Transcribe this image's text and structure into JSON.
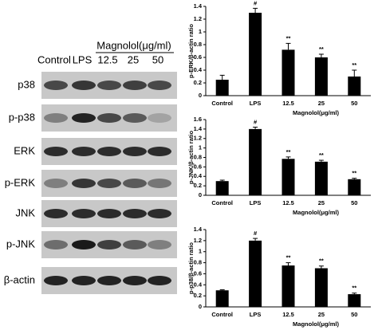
{
  "blot": {
    "columns": [
      "Control",
      "LPS",
      "12.5",
      "25",
      "50"
    ],
    "group_label": "Magnolol(μg/ml)",
    "rows": [
      "p38",
      "p-p38",
      "ERK",
      "p-ERK",
      "JNK",
      "p-JNK",
      "β-actin"
    ]
  },
  "chart_data": [
    {
      "type": "bar",
      "y_label": "p-ERK/β-actin ratio",
      "x_label": "Magnolol(μg/ml)",
      "color": "#000000",
      "categories": [
        "Control",
        "LPS",
        "12.5",
        "25",
        "50"
      ],
      "values": [
        0.25,
        1.3,
        0.72,
        0.6,
        0.3
      ],
      "errors": [
        0.07,
        0.07,
        0.1,
        0.05,
        0.1
      ],
      "annotations": [
        null,
        "#",
        "**",
        "**",
        "**"
      ],
      "ylim": [
        0,
        1.4
      ],
      "yticks": [
        0,
        0.2,
        0.4,
        0.6,
        0.8,
        1,
        1.2,
        1.4
      ]
    },
    {
      "type": "bar",
      "y_label": "p-JNK/β-actin ratio",
      "x_label": "Magnolol(μg/ml)",
      "color": "#000000",
      "categories": [
        "Control",
        "LPS",
        "12.5",
        "25",
        "50"
      ],
      "values": [
        0.3,
        1.4,
        0.77,
        0.71,
        0.34
      ],
      "errors": [
        0.02,
        0.04,
        0.04,
        0.03,
        0.02
      ],
      "annotations": [
        null,
        "#",
        "**",
        "**",
        "**"
      ],
      "ylim": [
        0,
        1.6
      ],
      "yticks": [
        0,
        0.2,
        0.4,
        0.6,
        0.8,
        1,
        1.2,
        1.4,
        1.6
      ]
    },
    {
      "type": "bar",
      "y_label": "p-p38/β-actin ratio",
      "x_label": "Magnolol(μg/ml)",
      "color": "#000000",
      "categories": [
        "Control",
        "LPS",
        "12.5",
        "25",
        "50"
      ],
      "values": [
        0.3,
        1.2,
        0.75,
        0.7,
        0.23
      ],
      "errors": [
        0.01,
        0.04,
        0.05,
        0.04,
        0.02
      ],
      "annotations": [
        null,
        "#",
        "**",
        "**",
        "**"
      ],
      "ylim": [
        0,
        1.4
      ],
      "yticks": [
        0,
        0.2,
        0.4,
        0.6,
        0.8,
        1,
        1.2,
        1.4
      ]
    }
  ]
}
